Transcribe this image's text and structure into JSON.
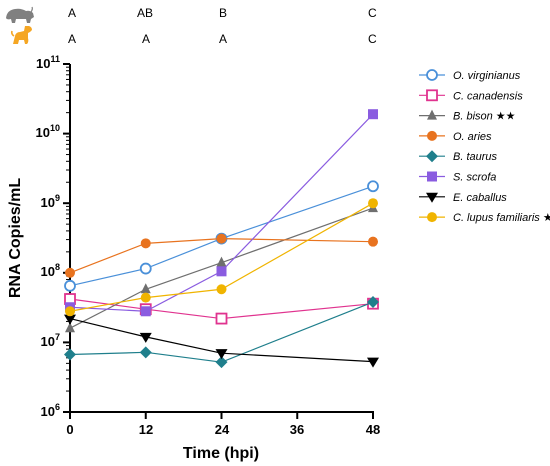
{
  "chart_data": {
    "type": "line",
    "title": "",
    "xlabel": "Time (hpi)",
    "ylabel": "RNA Copies/mL",
    "x": [
      0,
      12,
      24,
      48
    ],
    "x_ticks": [
      "0",
      "12",
      "24",
      "36",
      "48"
    ],
    "xlim": [
      0,
      48
    ],
    "y_scale": "log",
    "ylim": [
      1000000,
      100000000000
    ],
    "y_ticks": [
      {
        "base": "10",
        "exp": "6"
      },
      {
        "base": "10",
        "exp": "7"
      },
      {
        "base": "10",
        "exp": "8"
      },
      {
        "base": "10",
        "exp": "9"
      },
      {
        "base": "10",
        "exp": "10"
      },
      {
        "base": "10",
        "exp": "11"
      }
    ],
    "grid": false,
    "legend_position": "right",
    "series": [
      {
        "name": "O. virginianus",
        "suffix": "",
        "color": "#4a90d9",
        "marker": "circle-open",
        "values": [
          65000000,
          115000000,
          310000000,
          1750000000
        ]
      },
      {
        "name": "C. canadensis",
        "suffix": "",
        "color": "#e0338f",
        "marker": "square-open",
        "values": [
          42000000,
          30000000,
          22000000,
          36000000
        ]
      },
      {
        "name": "B. bison",
        "suffix": "★★",
        "color": "#6f6f6f",
        "marker": "triangle-up",
        "values": [
          16000000,
          58000000,
          140000000,
          850000000
        ]
      },
      {
        "name": "O. aries",
        "suffix": "",
        "color": "#e8731f",
        "marker": "circle",
        "values": [
          100000000,
          265000000,
          310000000,
          280000000
        ]
      },
      {
        "name": "B. taurus",
        "suffix": "",
        "color": "#1f7f8c",
        "marker": "diamond",
        "values": [
          6700000,
          7200000,
          5200000,
          38000000
        ]
      },
      {
        "name": "S. scrofa",
        "suffix": "",
        "color": "#8a5ce0",
        "marker": "square",
        "values": [
          32000000,
          28000000,
          105000000,
          19000000000
        ]
      },
      {
        "name": "E. caballus",
        "suffix": "",
        "color": "#000000",
        "marker": "triangle-down",
        "values": [
          22000000,
          12000000,
          7000000,
          5300000
        ]
      },
      {
        "name": "C. lupus familiaris",
        "suffix": "★",
        "color": "#f0b400",
        "marker": "circle",
        "values": [
          28000000,
          44000000,
          58000000,
          1000000000
        ]
      }
    ],
    "significance": {
      "rows": [
        {
          "icon": "bison-icon",
          "color": "#808080",
          "letters": [
            "A",
            "AB",
            "B",
            "C"
          ]
        },
        {
          "icon": "dog-icon",
          "color": "#f5a623",
          "letters": [
            "A",
            "A",
            "A",
            "C"
          ]
        }
      ]
    }
  }
}
